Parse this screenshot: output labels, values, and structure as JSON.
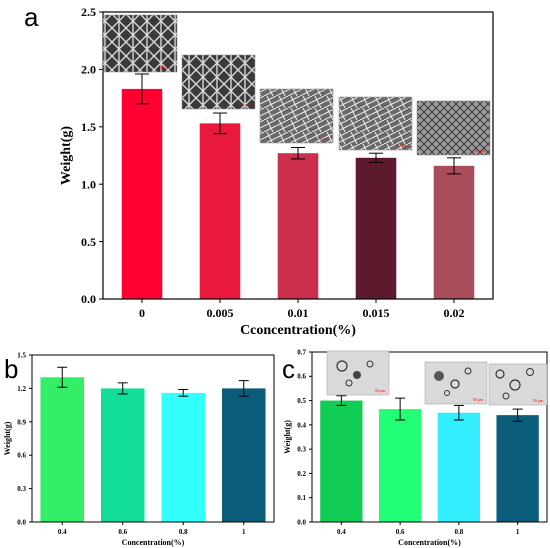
{
  "panels": {
    "a": {
      "label": "a"
    },
    "b": {
      "label": "b"
    },
    "c": {
      "label": "c"
    }
  },
  "micrographs": {
    "scale_label_a": "50 μm",
    "scale_label_c": "50 μm"
  },
  "chart_data": [
    {
      "panel": "a",
      "type": "bar",
      "categories": [
        "0",
        "0.005",
        "0.01",
        "0.015",
        "0.02"
      ],
      "values": [
        1.83,
        1.53,
        1.27,
        1.23,
        1.16
      ],
      "errors": [
        0.13,
        0.09,
        0.05,
        0.04,
        0.07
      ],
      "colors": [
        "#ff0033",
        "#e8183f",
        "#cc2e4e",
        "#5e1a2d",
        "#a94d5b"
      ],
      "xlabel": "Cconcentration(%)",
      "ylabel": "Weight(g)",
      "ylim": [
        0,
        2.5
      ],
      "yticks": [
        "0.0",
        "0.5",
        "1.0",
        "1.5",
        "2.0",
        "2.5"
      ],
      "insets": "micrograph above each bar"
    },
    {
      "panel": "b",
      "type": "bar",
      "categories": [
        "0.4",
        "0.6",
        "0.8",
        "1"
      ],
      "values": [
        1.3,
        1.2,
        1.16,
        1.2
      ],
      "errors": [
        0.09,
        0.05,
        0.03,
        0.07
      ],
      "colors": [
        "#33ee66",
        "#11dd99",
        "#33ffff",
        "#0a5c7a"
      ],
      "xlabel": "Concentration(%)",
      "ylabel": "Weight(g)",
      "ylim": [
        0,
        1.5
      ],
      "yticks": [
        "0.0",
        "0.3",
        "0.6",
        "0.9",
        "1.2",
        "1.5"
      ]
    },
    {
      "panel": "c",
      "type": "bar",
      "categories": [
        "0.4",
        "0.6",
        "0.8",
        "1"
      ],
      "values": [
        0.5,
        0.465,
        0.45,
        0.44
      ],
      "errors": [
        0.02,
        0.045,
        0.03,
        0.025
      ],
      "colors": [
        "#11cc55",
        "#22ff77",
        "#33eeff",
        "#0a5c7a"
      ],
      "xlabel": "Concentration(%)",
      "ylabel": "Weight(g)",
      "ylim": [
        0,
        0.7
      ],
      "yticks": [
        "0.0",
        "0.1",
        "0.2",
        "0.3",
        "0.4",
        "0.5",
        "0.6",
        "0.7"
      ],
      "insets": "micrograph above each bar"
    }
  ]
}
